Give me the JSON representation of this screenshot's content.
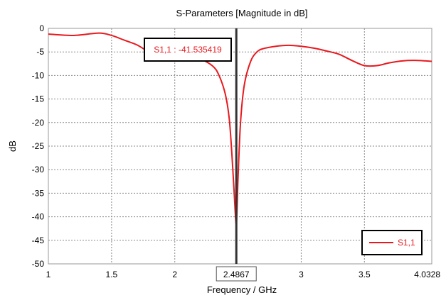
{
  "chart_data": {
    "type": "line",
    "title": "S-Parameters [Magnitude in dB]",
    "xlabel": "Frequency / GHz",
    "ylabel": "dB",
    "xlim": [
      1,
      4.0328
    ],
    "ylim": [
      -50,
      0
    ],
    "x_ticks": [
      "1",
      "1.5",
      "2",
      "2.4867",
      "3",
      "3.5",
      "4.0328"
    ],
    "x_tick_values": [
      1,
      1.5,
      2,
      2.4867,
      3,
      3.5,
      4.0328
    ],
    "highlighted_x_tick": "2.4867",
    "y_ticks": [
      "0",
      "-5",
      "-10",
      "-15",
      "-20",
      "-25",
      "-30",
      "-35",
      "-40",
      "-45",
      "-50"
    ],
    "y_tick_values": [
      0,
      -5,
      -10,
      -15,
      -20,
      -25,
      -30,
      -35,
      -40,
      -45,
      -50
    ],
    "grid": true,
    "legend_position": "bottom-right",
    "series": [
      {
        "name": "S1,1",
        "color": "#e8191e",
        "x": [
          1.0,
          1.2,
          1.4,
          1.5,
          1.6,
          1.7,
          1.8,
          1.9,
          2.0,
          2.1,
          2.2,
          2.3,
          2.35,
          2.4,
          2.43,
          2.45,
          2.47,
          2.4867,
          2.5,
          2.52,
          2.55,
          2.6,
          2.65,
          2.7,
          2.8,
          2.9,
          3.0,
          3.1,
          3.2,
          3.3,
          3.4,
          3.5,
          3.6,
          3.7,
          3.8,
          3.9,
          4.0328
        ],
        "values": [
          -1.2,
          -1.5,
          -1.0,
          -1.5,
          -2.5,
          -3.5,
          -5.0,
          -5.5,
          -5.8,
          -6.0,
          -6.5,
          -8.0,
          -10.0,
          -14.0,
          -19.0,
          -26.0,
          -35.0,
          -41.535419,
          -32.0,
          -20.0,
          -12.0,
          -7.0,
          -5.0,
          -4.3,
          -3.8,
          -3.6,
          -3.8,
          -4.2,
          -4.8,
          -5.5,
          -6.8,
          -7.9,
          -7.9,
          -7.3,
          -6.9,
          -6.8,
          -7.0
        ]
      }
    ],
    "marker": {
      "x": 2.4867,
      "label": "S1,1 : -41.535419",
      "line_color": "#333333"
    }
  }
}
